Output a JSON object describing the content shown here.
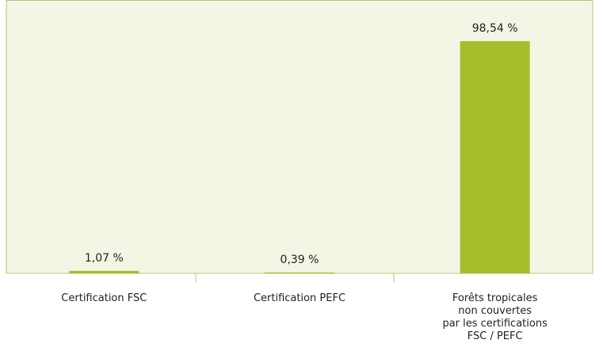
{
  "chart_data": {
    "type": "bar",
    "categories": [
      "Certification FSC",
      "Certification PEFC",
      "Forêts tropicales\nnon couvertes\npar les certifications\nFSC / PEFC"
    ],
    "values": [
      1.07,
      0.39,
      98.54
    ],
    "value_labels": [
      "1,07 %",
      "0,39 %",
      "98,54 %"
    ],
    "color": "#a6bd2c",
    "ylim": [
      0,
      116
    ]
  }
}
